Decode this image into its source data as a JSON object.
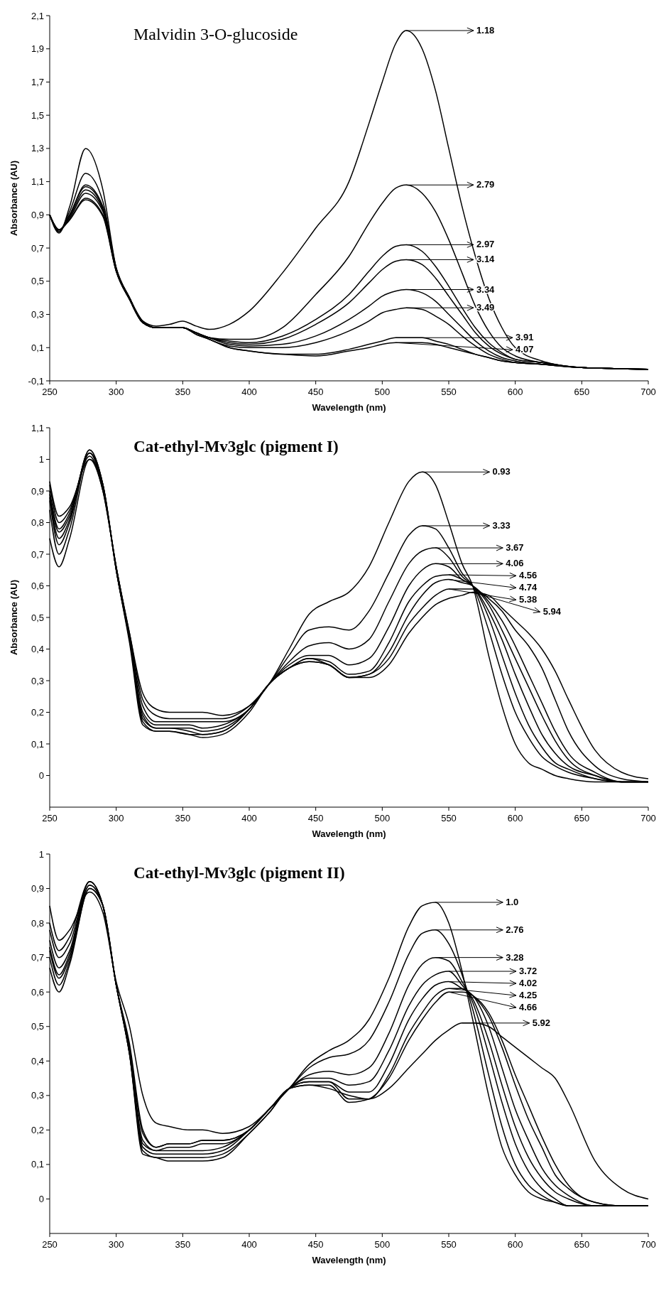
{
  "chart_data": [
    {
      "type": "line",
      "title": "Malvidin 3-O-glucoside",
      "xlabel": "Wavelength (nm)",
      "ylabel": "Absorbance (AU)",
      "xlim": [
        250,
        700
      ],
      "xticks": [
        250,
        300,
        350,
        400,
        450,
        500,
        550,
        600,
        650,
        700
      ],
      "ylim": [
        -0.1,
        2.1
      ],
      "yticks": [
        {
          "value": -0.1,
          "label": "-0,1"
        },
        {
          "value": 0.1,
          "label": "0,1"
        },
        {
          "value": 0.3,
          "label": "0,3"
        },
        {
          "value": 0.5,
          "label": "0,5"
        },
        {
          "value": 0.7,
          "label": "0,7"
        },
        {
          "value": 0.9,
          "label": "0,9"
        },
        {
          "value": 1.1,
          "label": "1,1"
        },
        {
          "value": 1.3,
          "label": "1,3"
        },
        {
          "value": 1.5,
          "label": "1,5"
        },
        {
          "value": 1.7,
          "label": "1,7"
        },
        {
          "value": 1.9,
          "label": "1,9"
        },
        {
          "value": 2.1,
          "label": "2,1"
        }
      ],
      "line_style": "solid",
      "legend": "right",
      "x": [
        250,
        257,
        265,
        277,
        290,
        300,
        310,
        320,
        330,
        340,
        350,
        360,
        370,
        385,
        400,
        425,
        450,
        475,
        490,
        500,
        510,
        518,
        530,
        540,
        550,
        560,
        570,
        580,
        590,
        600,
        620,
        650,
        700
      ],
      "series": [
        {
          "name": "1.18",
          "color": "#000000",
          "values": [
            0.9,
            0.79,
            0.95,
            1.3,
            1.05,
            0.58,
            0.4,
            0.26,
            0.23,
            0.24,
            0.26,
            0.23,
            0.21,
            0.24,
            0.32,
            0.55,
            0.82,
            1.1,
            1.45,
            1.7,
            1.93,
            2.01,
            1.9,
            1.65,
            1.3,
            0.95,
            0.65,
            0.4,
            0.22,
            0.1,
            0.02,
            -0.02,
            -0.03
          ]
        },
        {
          "name": "2.79",
          "color": "#000000",
          "values": [
            0.9,
            0.8,
            0.92,
            1.15,
            0.98,
            0.58,
            0.4,
            0.26,
            0.22,
            0.22,
            0.22,
            0.19,
            0.16,
            0.15,
            0.15,
            0.22,
            0.42,
            0.65,
            0.85,
            0.97,
            1.06,
            1.08,
            1.03,
            0.92,
            0.75,
            0.55,
            0.35,
            0.2,
            0.1,
            0.05,
            0.01,
            -0.02,
            -0.03
          ]
        },
        {
          "name": "2.97",
          "color": "#000000",
          "values": [
            0.9,
            0.8,
            0.9,
            1.08,
            0.95,
            0.58,
            0.4,
            0.25,
            0.22,
            0.22,
            0.22,
            0.19,
            0.16,
            0.14,
            0.13,
            0.17,
            0.27,
            0.42,
            0.56,
            0.65,
            0.71,
            0.72,
            0.68,
            0.59,
            0.47,
            0.34,
            0.22,
            0.13,
            0.07,
            0.03,
            0.01,
            -0.02,
            -0.03
          ]
        },
        {
          "name": "3.14",
          "color": "#000000",
          "values": [
            0.9,
            0.8,
            0.9,
            1.07,
            0.94,
            0.57,
            0.4,
            0.25,
            0.22,
            0.22,
            0.22,
            0.19,
            0.16,
            0.13,
            0.12,
            0.15,
            0.24,
            0.37,
            0.49,
            0.57,
            0.62,
            0.63,
            0.6,
            0.52,
            0.41,
            0.3,
            0.19,
            0.11,
            0.06,
            0.03,
            0.01,
            -0.02,
            -0.03
          ]
        },
        {
          "name": "3.34",
          "color": "#000000",
          "values": [
            0.9,
            0.81,
            0.89,
            1.05,
            0.93,
            0.57,
            0.4,
            0.25,
            0.22,
            0.22,
            0.22,
            0.19,
            0.16,
            0.12,
            0.11,
            0.12,
            0.17,
            0.27,
            0.35,
            0.41,
            0.44,
            0.45,
            0.43,
            0.38,
            0.3,
            0.22,
            0.14,
            0.08,
            0.04,
            0.02,
            0.0,
            -0.02,
            -0.03
          ]
        },
        {
          "name": "3.49",
          "color": "#000000",
          "values": [
            0.9,
            0.81,
            0.88,
            1.03,
            0.92,
            0.56,
            0.39,
            0.25,
            0.22,
            0.22,
            0.22,
            0.19,
            0.15,
            0.11,
            0.1,
            0.1,
            0.13,
            0.2,
            0.26,
            0.31,
            0.33,
            0.34,
            0.33,
            0.29,
            0.24,
            0.17,
            0.11,
            0.06,
            0.03,
            0.01,
            0.0,
            -0.02,
            -0.03
          ]
        },
        {
          "name": "3.91",
          "color": "#000000",
          "values": [
            0.9,
            0.81,
            0.87,
            1.0,
            0.9,
            0.56,
            0.39,
            0.25,
            0.22,
            0.22,
            0.22,
            0.18,
            0.15,
            0.1,
            0.08,
            0.06,
            0.06,
            0.09,
            0.12,
            0.14,
            0.16,
            0.16,
            0.16,
            0.14,
            0.12,
            0.09,
            0.06,
            0.04,
            0.02,
            0.01,
            0.0,
            -0.02,
            -0.03
          ]
        },
        {
          "name": "4.07",
          "color": "#000000",
          "values": [
            0.9,
            0.81,
            0.87,
            0.99,
            0.89,
            0.56,
            0.39,
            0.25,
            0.22,
            0.22,
            0.22,
            0.18,
            0.15,
            0.1,
            0.08,
            0.06,
            0.05,
            0.08,
            0.1,
            0.12,
            0.13,
            0.13,
            0.13,
            0.12,
            0.1,
            0.08,
            0.06,
            0.04,
            0.02,
            0.01,
            0.0,
            -0.02,
            -0.03
          ]
        }
      ]
    },
    {
      "type": "line",
      "title": "Cat-ethyl-Mv3glc (pigment I)",
      "xlabel": "Wavelength (nm)",
      "ylabel": "Absorbance (AU)",
      "xlim": [
        250,
        700
      ],
      "xticks": [
        250,
        300,
        350,
        400,
        450,
        500,
        550,
        600,
        650,
        700
      ],
      "ylim": [
        -0.1,
        1.1
      ],
      "yticks": [
        {
          "value": 0,
          "label": "0"
        },
        {
          "value": 0.1,
          "label": "0,1"
        },
        {
          "value": 0.2,
          "label": "0,2"
        },
        {
          "value": 0.3,
          "label": "0,3"
        },
        {
          "value": 0.4,
          "label": "0,4"
        },
        {
          "value": 0.5,
          "label": "0,5"
        },
        {
          "value": 0.6,
          "label": "0,6"
        },
        {
          "value": 0.7,
          "label": "0,7"
        },
        {
          "value": 0.8,
          "label": "0,8"
        },
        {
          "value": 0.9,
          "label": "0,9"
        },
        {
          "value": 1,
          "label": "1"
        },
        {
          "value": 1.1,
          "label": "1,1"
        }
      ],
      "line_style": "solid",
      "legend": "right",
      "x": [
        250,
        257,
        265,
        280,
        290,
        300,
        310,
        320,
        330,
        340,
        355,
        365,
        380,
        400,
        415,
        430,
        445,
        460,
        475,
        490,
        505,
        520,
        530,
        540,
        550,
        560,
        568,
        580,
        590,
        600,
        610,
        620,
        630,
        640,
        660,
        680,
        700
      ],
      "series": [
        {
          "name": "0.93",
          "color": "#000000",
          "values": [
            0.93,
            0.82,
            0.85,
            1.0,
            0.9,
            0.66,
            0.45,
            0.26,
            0.21,
            0.2,
            0.2,
            0.2,
            0.19,
            0.22,
            0.29,
            0.4,
            0.51,
            0.55,
            0.58,
            0.66,
            0.8,
            0.93,
            0.96,
            0.92,
            0.8,
            0.67,
            0.6,
            0.38,
            0.22,
            0.1,
            0.04,
            0.02,
            0.0,
            -0.01,
            -0.02,
            -0.02,
            -0.02
          ]
        },
        {
          "name": "3.33",
          "color": "#000000",
          "values": [
            0.92,
            0.8,
            0.84,
            1.01,
            0.9,
            0.66,
            0.45,
            0.24,
            0.19,
            0.18,
            0.18,
            0.18,
            0.18,
            0.22,
            0.29,
            0.38,
            0.46,
            0.47,
            0.46,
            0.52,
            0.64,
            0.76,
            0.79,
            0.78,
            0.72,
            0.64,
            0.6,
            0.46,
            0.32,
            0.2,
            0.12,
            0.06,
            0.03,
            0.01,
            -0.01,
            -0.02,
            -0.02
          ]
        },
        {
          "name": "3.67",
          "color": "#000000",
          "values": [
            0.9,
            0.78,
            0.83,
            1.02,
            0.91,
            0.66,
            0.44,
            0.22,
            0.17,
            0.17,
            0.17,
            0.17,
            0.17,
            0.21,
            0.29,
            0.36,
            0.41,
            0.42,
            0.4,
            0.43,
            0.55,
            0.67,
            0.71,
            0.72,
            0.69,
            0.63,
            0.6,
            0.5,
            0.38,
            0.26,
            0.16,
            0.09,
            0.04,
            0.02,
            -0.01,
            -0.02,
            -0.02
          ]
        },
        {
          "name": "4.06",
          "color": "#000000",
          "values": [
            0.89,
            0.77,
            0.82,
            1.02,
            0.91,
            0.66,
            0.44,
            0.2,
            0.16,
            0.16,
            0.16,
            0.15,
            0.16,
            0.21,
            0.29,
            0.35,
            0.38,
            0.38,
            0.35,
            0.37,
            0.47,
            0.6,
            0.65,
            0.67,
            0.66,
            0.62,
            0.6,
            0.52,
            0.43,
            0.32,
            0.22,
            0.13,
            0.07,
            0.03,
            0.0,
            -0.02,
            -0.02
          ]
        },
        {
          "name": "4.56",
          "color": "#000000",
          "values": [
            0.88,
            0.75,
            0.81,
            1.03,
            0.92,
            0.65,
            0.43,
            0.19,
            0.15,
            0.15,
            0.15,
            0.14,
            0.15,
            0.21,
            0.29,
            0.34,
            0.37,
            0.36,
            0.32,
            0.33,
            0.42,
            0.55,
            0.6,
            0.63,
            0.635,
            0.62,
            0.6,
            0.54,
            0.46,
            0.37,
            0.28,
            0.19,
            0.11,
            0.05,
            0.0,
            -0.02,
            -0.02
          ]
        },
        {
          "name": "4.74",
          "color": "#000000",
          "values": [
            0.87,
            0.73,
            0.8,
            1.03,
            0.92,
            0.65,
            0.43,
            0.18,
            0.15,
            0.15,
            0.14,
            0.13,
            0.14,
            0.21,
            0.29,
            0.34,
            0.37,
            0.35,
            0.31,
            0.32,
            0.39,
            0.51,
            0.57,
            0.61,
            0.62,
            0.61,
            0.6,
            0.55,
            0.49,
            0.41,
            0.32,
            0.23,
            0.14,
            0.07,
            0.01,
            -0.02,
            -0.02
          ]
        },
        {
          "name": "5.38",
          "color": "#000000",
          "values": [
            0.84,
            0.7,
            0.78,
            1.02,
            0.92,
            0.65,
            0.43,
            0.17,
            0.14,
            0.14,
            0.13,
            0.13,
            0.14,
            0.21,
            0.29,
            0.34,
            0.36,
            0.35,
            0.31,
            0.32,
            0.37,
            0.48,
            0.53,
            0.57,
            0.59,
            0.59,
            0.59,
            0.56,
            0.52,
            0.46,
            0.41,
            0.34,
            0.24,
            0.14,
            0.03,
            -0.01,
            -0.02
          ]
        },
        {
          "name": "5.94",
          "color": "#000000",
          "values": [
            0.75,
            0.66,
            0.75,
            1.0,
            0.92,
            0.65,
            0.42,
            0.16,
            0.14,
            0.14,
            0.13,
            0.12,
            0.13,
            0.2,
            0.29,
            0.34,
            0.36,
            0.35,
            0.31,
            0.31,
            0.35,
            0.45,
            0.5,
            0.54,
            0.56,
            0.57,
            0.58,
            0.57,
            0.53,
            0.49,
            0.45,
            0.4,
            0.33,
            0.24,
            0.08,
            0.01,
            -0.01
          ]
        }
      ]
    },
    {
      "type": "line",
      "title": "Cat-ethyl-Mv3glc (pigment II)",
      "xlabel": "Wavelength (nm)",
      "xlim": [
        250,
        700
      ],
      "xticks": [
        250,
        300,
        350,
        400,
        450,
        500,
        550,
        600,
        650,
        700
      ],
      "ylim": [
        -0.1,
        1
      ],
      "yticks": [
        {
          "value": 0,
          "label": "0"
        },
        {
          "value": 0.1,
          "label": "0,1"
        },
        {
          "value": 0.2,
          "label": "0,2"
        },
        {
          "value": 0.3,
          "label": "0,3"
        },
        {
          "value": 0.4,
          "label": "0,4"
        },
        {
          "value": 0.5,
          "label": "0,5"
        },
        {
          "value": 0.6,
          "label": "0,6"
        },
        {
          "value": 0.7,
          "label": "0,7"
        },
        {
          "value": 0.8,
          "label": "0,8"
        },
        {
          "value": 0.9,
          "label": "0,9"
        },
        {
          "value": 1,
          "label": "1"
        }
      ],
      "line_style": "solid",
      "legend": "right",
      "x": [
        250,
        257,
        265,
        280,
        290,
        300,
        310,
        320,
        330,
        340,
        355,
        365,
        380,
        400,
        415,
        430,
        445,
        460,
        475,
        490,
        505,
        520,
        530,
        540,
        550,
        560,
        568,
        580,
        590,
        600,
        610,
        620,
        630,
        640,
        660,
        680,
        700
      ],
      "series": [
        {
          "name": "1.0",
          "color": "#000000",
          "values": [
            0.78,
            0.7,
            0.74,
            0.92,
            0.85,
            0.62,
            0.45,
            0.2,
            0.15,
            0.16,
            0.16,
            0.17,
            0.17,
            0.2,
            0.26,
            0.32,
            0.39,
            0.43,
            0.46,
            0.52,
            0.64,
            0.79,
            0.85,
            0.86,
            0.8,
            0.66,
            0.52,
            0.3,
            0.15,
            0.07,
            0.02,
            0.0,
            -0.01,
            -0.02,
            -0.02,
            -0.02,
            -0.02
          ]
        },
        {
          "name": "2.76",
          "color": "#000000",
          "values": [
            0.8,
            0.72,
            0.76,
            0.92,
            0.85,
            0.62,
            0.44,
            0.19,
            0.15,
            0.16,
            0.16,
            0.17,
            0.17,
            0.2,
            0.26,
            0.32,
            0.38,
            0.41,
            0.42,
            0.46,
            0.57,
            0.71,
            0.77,
            0.78,
            0.74,
            0.65,
            0.55,
            0.36,
            0.21,
            0.1,
            0.04,
            0.01,
            -0.01,
            -0.02,
            -0.02,
            -0.02,
            -0.02
          ]
        },
        {
          "name": "3.28",
          "color": "#000000",
          "values": [
            0.75,
            0.67,
            0.72,
            0.92,
            0.85,
            0.62,
            0.43,
            0.17,
            0.14,
            0.15,
            0.15,
            0.16,
            0.16,
            0.2,
            0.26,
            0.32,
            0.36,
            0.37,
            0.36,
            0.38,
            0.48,
            0.62,
            0.68,
            0.7,
            0.69,
            0.63,
            0.57,
            0.42,
            0.28,
            0.16,
            0.08,
            0.03,
            0.0,
            -0.02,
            -0.02,
            -0.02,
            -0.02
          ]
        },
        {
          "name": "3.72",
          "color": "#000000",
          "values": [
            0.73,
            0.65,
            0.71,
            0.91,
            0.85,
            0.62,
            0.43,
            0.16,
            0.14,
            0.14,
            0.14,
            0.14,
            0.15,
            0.2,
            0.26,
            0.32,
            0.35,
            0.35,
            0.33,
            0.34,
            0.43,
            0.56,
            0.62,
            0.65,
            0.66,
            0.62,
            0.58,
            0.46,
            0.33,
            0.21,
            0.12,
            0.06,
            0.02,
            0.0,
            -0.02,
            -0.02,
            -0.02
          ]
        },
        {
          "name": "4.02",
          "color": "#000000",
          "values": [
            0.72,
            0.64,
            0.7,
            0.91,
            0.85,
            0.62,
            0.42,
            0.15,
            0.13,
            0.13,
            0.13,
            0.13,
            0.14,
            0.2,
            0.26,
            0.32,
            0.34,
            0.34,
            0.31,
            0.31,
            0.39,
            0.52,
            0.58,
            0.62,
            0.63,
            0.61,
            0.59,
            0.5,
            0.38,
            0.26,
            0.17,
            0.09,
            0.04,
            0.01,
            -0.02,
            -0.02,
            -0.02
          ]
        },
        {
          "name": "4.25",
          "color": "#000000",
          "values": [
            0.7,
            0.62,
            0.69,
            0.9,
            0.85,
            0.62,
            0.42,
            0.14,
            0.12,
            0.12,
            0.12,
            0.12,
            0.13,
            0.19,
            0.25,
            0.32,
            0.34,
            0.34,
            0.29,
            0.29,
            0.36,
            0.48,
            0.54,
            0.59,
            0.61,
            0.61,
            0.59,
            0.53,
            0.44,
            0.33,
            0.23,
            0.15,
            0.07,
            0.03,
            -0.01,
            -0.02,
            -0.02
          ]
        },
        {
          "name": "4.66",
          "color": "#000000",
          "values": [
            0.67,
            0.6,
            0.68,
            0.9,
            0.85,
            0.62,
            0.42,
            0.13,
            0.12,
            0.11,
            0.11,
            0.11,
            0.12,
            0.19,
            0.25,
            0.32,
            0.33,
            0.33,
            0.28,
            0.29,
            0.35,
            0.46,
            0.52,
            0.57,
            0.6,
            0.6,
            0.59,
            0.54,
            0.46,
            0.36,
            0.27,
            0.18,
            0.1,
            0.04,
            -0.01,
            -0.02,
            -0.02
          ]
        },
        {
          "name": "5.92",
          "color": "#000000",
          "values": [
            0.85,
            0.75,
            0.78,
            0.89,
            0.83,
            0.63,
            0.5,
            0.3,
            0.22,
            0.21,
            0.2,
            0.2,
            0.19,
            0.21,
            0.26,
            0.32,
            0.33,
            0.32,
            0.3,
            0.29,
            0.32,
            0.38,
            0.42,
            0.46,
            0.49,
            0.51,
            0.51,
            0.5,
            0.47,
            0.44,
            0.41,
            0.38,
            0.35,
            0.28,
            0.11,
            0.03,
            0.0
          ]
        }
      ]
    }
  ]
}
